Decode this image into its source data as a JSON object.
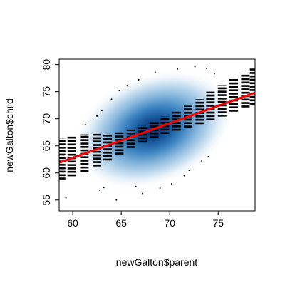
{
  "chart_data": {
    "type": "scatter",
    "title": "",
    "xlabel": "newGalton$parent",
    "ylabel": "newGalton$child",
    "xlim": [
      58.6,
      78.8
    ],
    "ylim": [
      53.0,
      81.0
    ],
    "xticks": [
      60,
      65,
      70,
      75
    ],
    "yticks": [
      55,
      60,
      65,
      70,
      75,
      80
    ],
    "grid": false,
    "legend": "none",
    "background": "smoothed density of points (blue, darkest near x=68.3, y=68.0)",
    "regression_line": {
      "x": [
        58.6,
        78.8
      ],
      "y": [
        61.9,
        74.8
      ],
      "color": "#ff0000"
    },
    "confidence_band_columns": [
      {
        "x": 58.8,
        "ymin": 58.8,
        "ymax": 66.5
      },
      {
        "x": 59.9,
        "ymin": 59.4,
        "ymax": 66.8
      },
      {
        "x": 61.2,
        "ymin": 60.2,
        "ymax": 67.2
      },
      {
        "x": 62.5,
        "ymin": 61.2,
        "ymax": 67.4
      },
      {
        "x": 63.6,
        "ymin": 62.3,
        "ymax": 67.3
      },
      {
        "x": 64.8,
        "ymin": 63.4,
        "ymax": 67.5
      },
      {
        "x": 66.0,
        "ymin": 64.6,
        "ymax": 68.0
      },
      {
        "x": 67.2,
        "ymin": 65.6,
        "ymax": 68.8
      },
      {
        "x": 68.4,
        "ymin": 66.5,
        "ymax": 69.6
      },
      {
        "x": 69.5,
        "ymin": 67.2,
        "ymax": 70.4
      },
      {
        "x": 70.7,
        "ymin": 67.8,
        "ymax": 71.3
      },
      {
        "x": 71.9,
        "ymin": 68.4,
        "ymax": 72.4
      },
      {
        "x": 73.1,
        "ymin": 69.0,
        "ymax": 73.6
      },
      {
        "x": 74.2,
        "ymin": 69.7,
        "ymax": 75.0
      },
      {
        "x": 75.4,
        "ymin": 70.4,
        "ymax": 76.2
      },
      {
        "x": 76.6,
        "ymin": 71.3,
        "ymax": 77.4
      },
      {
        "x": 77.8,
        "ymin": 72.1,
        "ymax": 78.5
      },
      {
        "x": 78.7,
        "ymin": 72.6,
        "ymax": 79.3
      }
    ],
    "outlier_points": [
      {
        "x": 59.3,
        "y": 55.4
      },
      {
        "x": 62.8,
        "y": 56.8
      },
      {
        "x": 64.5,
        "y": 55.0
      },
      {
        "x": 63.2,
        "y": 57.3
      },
      {
        "x": 66.5,
        "y": 57.5
      },
      {
        "x": 67.2,
        "y": 56.2
      },
      {
        "x": 69.0,
        "y": 57.2
      },
      {
        "x": 70.2,
        "y": 58.0
      },
      {
        "x": 71.5,
        "y": 59.5
      },
      {
        "x": 72.0,
        "y": 60.5
      },
      {
        "x": 73.3,
        "y": 62.2
      },
      {
        "x": 74.0,
        "y": 63.0
      },
      {
        "x": 61.3,
        "y": 68.9
      },
      {
        "x": 62.5,
        "y": 70.5
      },
      {
        "x": 63.0,
        "y": 71.5
      },
      {
        "x": 64.0,
        "y": 73.6
      },
      {
        "x": 64.8,
        "y": 75.2
      },
      {
        "x": 65.6,
        "y": 76.1
      },
      {
        "x": 66.8,
        "y": 77.2
      },
      {
        "x": 68.5,
        "y": 78.6
      },
      {
        "x": 70.8,
        "y": 79.2
      },
      {
        "x": 72.6,
        "y": 79.6
      },
      {
        "x": 73.8,
        "y": 79.3
      },
      {
        "x": 74.6,
        "y": 78.3
      }
    ]
  }
}
